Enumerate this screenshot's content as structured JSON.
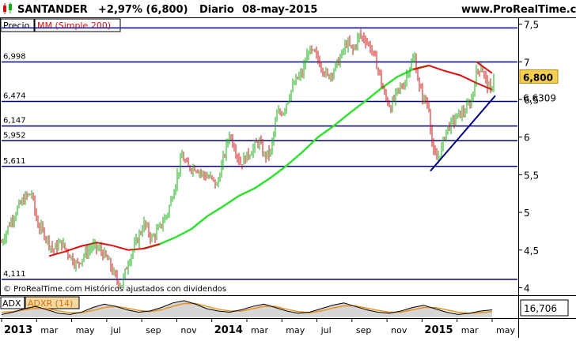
{
  "header": {
    "ticker": "SANTANDER",
    "change": "+2,97% (6,800)",
    "period": "Diario",
    "date": "08-may-2015",
    "site": "www.ProRealTime.com"
  },
  "legend": {
    "price_label": "Precio",
    "ma_label": "MM (Simple 200)"
  },
  "copyright": "© ProRealTime.com  Históricos ajustados con dividendos",
  "colors": {
    "support_lines": "#000080",
    "ma": "#32e032",
    "ma_recent": "#e01010",
    "up_candle": "#10b010",
    "down_candle": "#d01010",
    "trendline": "#000080",
    "last_price_bg": "#f5d050",
    "adx_line": "#000000",
    "adxr_line": "#e89020"
  },
  "chart_data": [
    {
      "type": "line",
      "title": "SANTANDER",
      "ylim": [
        3.9,
        7.58
      ],
      "y_ticks": [
        "7,5",
        "7",
        "6,5",
        "6",
        "5,5",
        "5",
        "4,5",
        "4"
      ],
      "y_tick_values": [
        7.5,
        7.0,
        6.5,
        6.0,
        5.5,
        5.0,
        4.5,
        4.0
      ],
      "x_ticks": [
        {
          "label": "2013",
          "bold": true
        },
        {
          "label": "mar",
          "bold": false
        },
        {
          "label": "may",
          "bold": false
        },
        {
          "label": "jul",
          "bold": false
        },
        {
          "label": "sep",
          "bold": false
        },
        {
          "label": "nov",
          "bold": false
        },
        {
          "label": "2014",
          "bold": true
        },
        {
          "label": "mar",
          "bold": false
        },
        {
          "label": "may",
          "bold": false
        },
        {
          "label": "jul",
          "bold": false
        },
        {
          "label": "sep",
          "bold": false
        },
        {
          "label": "nov",
          "bold": false
        },
        {
          "label": "2015",
          "bold": true
        },
        {
          "label": "mar",
          "bold": false
        },
        {
          "label": "may",
          "bold": false
        }
      ],
      "horizontal_levels": [
        {
          "value": 7.45,
          "label": ""
        },
        {
          "value": 6.998,
          "label": "6,998"
        },
        {
          "value": 6.474,
          "label": "6,474"
        },
        {
          "value": 6.147,
          "label": "6,147"
        },
        {
          "value": 5.952,
          "label": "5,952"
        },
        {
          "value": 5.611,
          "label": "5,611"
        },
        {
          "value": 4.111,
          "label": "4,111"
        }
      ],
      "last_price": {
        "value": 6.8,
        "label": "6,800"
      },
      "ma_value": {
        "value": 6.6309,
        "label": "6,6309"
      },
      "price_series": [
        [
          0,
          4.6
        ],
        [
          10,
          4.85
        ],
        [
          20,
          5.05
        ],
        [
          30,
          5.2
        ],
        [
          38,
          5.25
        ],
        [
          45,
          4.85
        ],
        [
          55,
          4.7
        ],
        [
          65,
          4.5
        ],
        [
          75,
          4.6
        ],
        [
          85,
          4.45
        ],
        [
          95,
          4.3
        ],
        [
          105,
          4.45
        ],
        [
          115,
          4.55
        ],
        [
          125,
          4.5
        ],
        [
          135,
          4.35
        ],
        [
          145,
          4.1
        ],
        [
          152,
          4.05
        ],
        [
          160,
          4.35
        ],
        [
          170,
          4.6
        ],
        [
          180,
          4.85
        ],
        [
          190,
          4.65
        ],
        [
          200,
          4.8
        ],
        [
          210,
          5.0
        ],
        [
          220,
          5.4
        ],
        [
          228,
          5.75
        ],
        [
          235,
          5.6
        ],
        [
          245,
          5.6
        ],
        [
          255,
          5.5
        ],
        [
          265,
          5.45
        ],
        [
          272,
          5.35
        ],
        [
          280,
          5.7
        ],
        [
          288,
          6.05
        ],
        [
          295,
          5.85
        ],
        [
          302,
          5.65
        ],
        [
          310,
          5.75
        ],
        [
          318,
          5.85
        ],
        [
          325,
          5.95
        ],
        [
          332,
          5.75
        ],
        [
          340,
          5.8
        ],
        [
          348,
          6.3
        ],
        [
          356,
          6.35
        ],
        [
          365,
          6.6
        ],
        [
          372,
          6.75
        ],
        [
          380,
          6.85
        ],
        [
          388,
          7.15
        ],
        [
          396,
          7.1
        ],
        [
          404,
          6.95
        ],
        [
          412,
          6.8
        ],
        [
          420,
          6.9
        ],
        [
          428,
          7.05
        ],
        [
          436,
          7.25
        ],
        [
          444,
          7.15
        ],
        [
          452,
          7.35
        ],
        [
          460,
          7.3
        ],
        [
          468,
          7.15
        ],
        [
          476,
          6.9
        ],
        [
          484,
          6.55
        ],
        [
          492,
          6.4
        ],
        [
          500,
          6.6
        ],
        [
          508,
          6.7
        ],
        [
          516,
          6.95
        ],
        [
          522,
          7.05
        ],
        [
          528,
          6.65
        ],
        [
          534,
          6.5
        ],
        [
          540,
          6.4
        ],
        [
          545,
          5.8
        ],
        [
          550,
          5.7
        ],
        [
          556,
          5.85
        ],
        [
          562,
          6.1
        ],
        [
          570,
          6.2
        ],
        [
          578,
          6.3
        ],
        [
          586,
          6.35
        ],
        [
          594,
          6.5
        ],
        [
          600,
          6.85
        ],
        [
          606,
          6.95
        ],
        [
          612,
          6.75
        ],
        [
          618,
          6.6
        ],
        [
          622,
          6.8
        ]
      ],
      "ma_series": [
        [
          60,
          4.42
        ],
        [
          80,
          4.48
        ],
        [
          100,
          4.55
        ],
        [
          120,
          4.6
        ],
        [
          140,
          4.56
        ],
        [
          160,
          4.5
        ],
        [
          180,
          4.52
        ],
        [
          200,
          4.58
        ],
        [
          220,
          4.67
        ],
        [
          240,
          4.78
        ],
        [
          260,
          4.95
        ],
        [
          280,
          5.08
        ],
        [
          300,
          5.22
        ],
        [
          320,
          5.32
        ],
        [
          340,
          5.46
        ],
        [
          360,
          5.62
        ],
        [
          380,
          5.8
        ],
        [
          400,
          6.0
        ],
        [
          420,
          6.15
        ],
        [
          440,
          6.32
        ],
        [
          460,
          6.48
        ],
        [
          480,
          6.65
        ],
        [
          500,
          6.8
        ],
        [
          520,
          6.9
        ],
        [
          540,
          6.95
        ],
        [
          560,
          6.88
        ],
        [
          580,
          6.82
        ],
        [
          600,
          6.72
        ],
        [
          620,
          6.63
        ]
      ],
      "trendline": [
        [
          542,
          5.55
        ],
        [
          624,
          6.55
        ]
      ],
      "trendline2": [
        [
          600,
          7.0
        ],
        [
          620,
          6.85
        ]
      ]
    },
    {
      "type": "line",
      "title": "ADX",
      "series": [
        {
          "name": "ADX",
          "values": [
            10,
            14,
            20,
            24,
            18,
            12,
            10,
            14,
            22,
            28,
            24,
            18,
            14,
            16,
            22,
            30,
            34,
            28,
            20,
            16,
            14,
            18,
            24,
            28,
            22,
            16,
            12,
            14,
            20,
            26,
            30,
            24,
            18,
            14,
            12,
            16,
            22,
            26,
            20,
            14,
            10,
            12,
            16,
            18
          ]
        },
        {
          "name": "ADXR (14)",
          "values": [
            14,
            15,
            18,
            21,
            20,
            16,
            13,
            13,
            17,
            22,
            24,
            21,
            17,
            15,
            18,
            24,
            29,
            29,
            24,
            19,
            16,
            16,
            20,
            24,
            24,
            19,
            15,
            13,
            16,
            21,
            25,
            25,
            21,
            17,
            14,
            14,
            18,
            22,
            22,
            18,
            14,
            12,
            13,
            15
          ]
        }
      ],
      "last_value": "16,706"
    }
  ]
}
